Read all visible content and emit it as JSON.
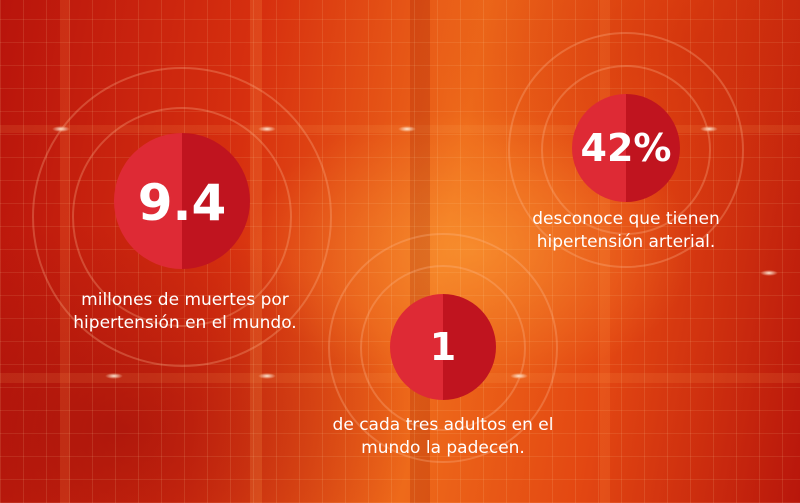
{
  "colors": {
    "circle_left": "#de2a35",
    "circle_right": "#c0141f",
    "text": "#ffffff"
  },
  "stats": [
    {
      "value": "9.4",
      "caption_line1": "millones de muertes por",
      "caption_line2": "hipertensión en el mundo."
    },
    {
      "value": "42%",
      "caption_line1": "desconoce que tienen",
      "caption_line2": "hipertensión arterial."
    },
    {
      "value": "1",
      "caption_line1": "de cada tres adultos en el",
      "caption_line2": "mundo la padecen."
    }
  ]
}
